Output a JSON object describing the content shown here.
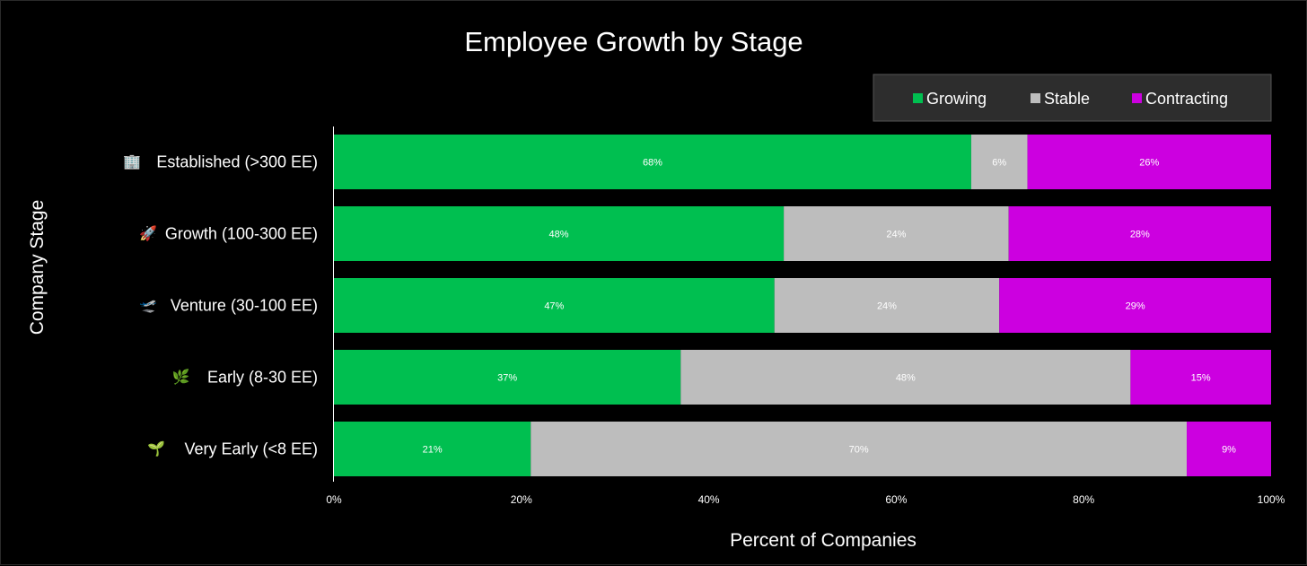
{
  "chart_data": {
    "type": "bar",
    "orientation": "horizontal",
    "stacked": true,
    "title": "Employee Growth by Stage",
    "xlabel": "Percent of Companies",
    "ylabel": "Company Stage",
    "xlim": [
      0,
      100
    ],
    "x_ticks": [
      "0%",
      "20%",
      "40%",
      "60%",
      "80%",
      "100%"
    ],
    "grid": false,
    "legend_position": "top-right",
    "categories": [
      {
        "label": "Established (>300 EE)",
        "icon": "office-building-icon"
      },
      {
        "label": "Growth (100-300 EE)",
        "icon": "rocket-icon"
      },
      {
        "label": "Venture (30-100 EE)",
        "icon": "airplane-icon"
      },
      {
        "label": "Early (8-30 EE)",
        "icon": "herb-icon"
      },
      {
        "label": "Very Early (<8 EE)",
        "icon": "seedling-icon"
      }
    ],
    "series": [
      {
        "name": "Growing",
        "color": "#00bf50",
        "values": [
          68,
          48,
          47,
          37,
          21
        ],
        "labels": [
          "68%",
          "48%",
          "47%",
          "37%",
          "21%"
        ]
      },
      {
        "name": "Stable",
        "color": "#bdbdbd",
        "values": [
          6,
          24,
          24,
          48,
          70
        ],
        "labels": [
          "6%",
          "24%",
          "24%",
          "48%",
          "70%"
        ]
      },
      {
        "name": "Contracting",
        "color": "#cc00e0",
        "values": [
          26,
          28,
          29,
          15,
          9
        ],
        "labels": [
          "26%",
          "28%",
          "29%",
          "15%",
          "9%"
        ]
      }
    ]
  },
  "colors": {
    "background": "#000000",
    "legend_bg": "#2d2d2d",
    "legend_border": "#555555",
    "axis": "#ffffff"
  }
}
